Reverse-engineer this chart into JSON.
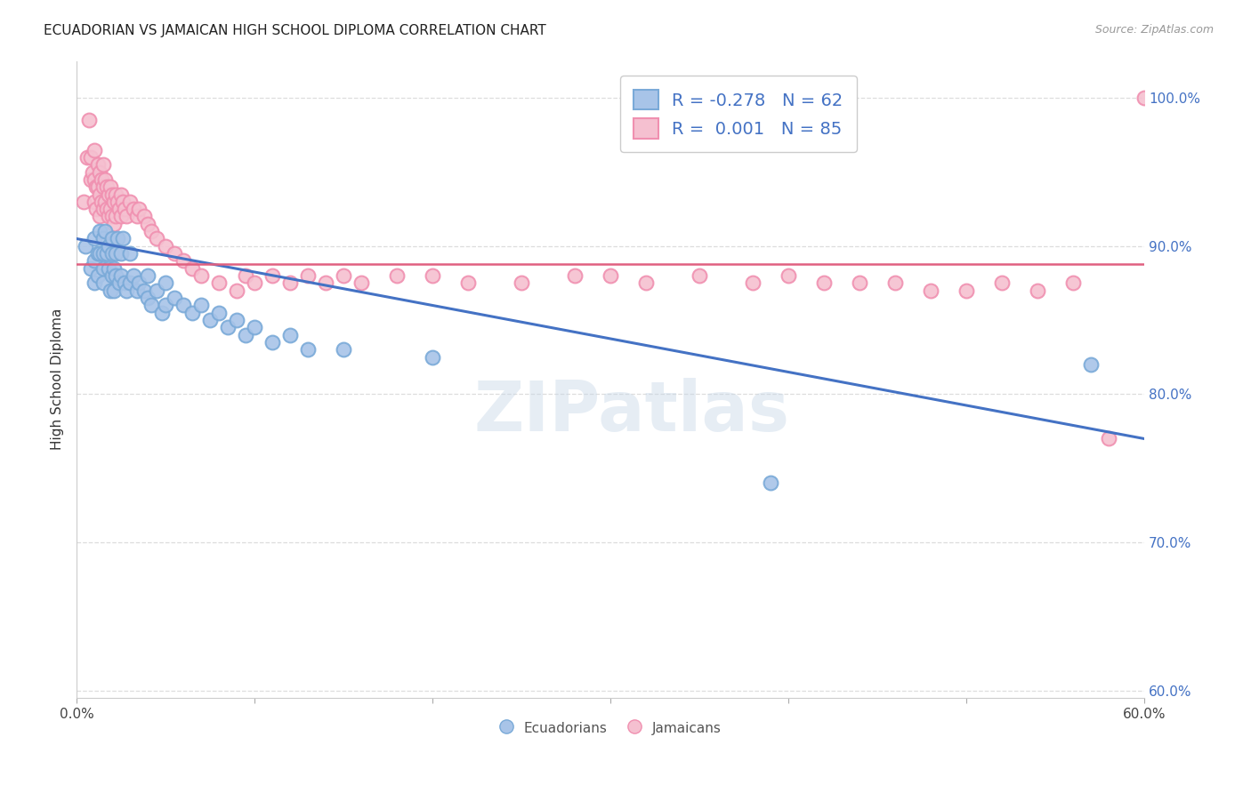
{
  "title": "ECUADORIAN VS JAMAICAN HIGH SCHOOL DIPLOMA CORRELATION CHART",
  "source": "Source: ZipAtlas.com",
  "ylabel": "High School Diploma",
  "watermark": "ZIPatlas",
  "blue_color": "#a8c4e8",
  "blue_edge": "#7aaad8",
  "pink_color": "#f5c0d0",
  "pink_edge": "#f090b0",
  "blue_line_color": "#4472c4",
  "pink_line_color": "#e06080",
  "xlim": [
    0.0,
    0.6
  ],
  "ylim": [
    0.595,
    1.025
  ],
  "yticks": [
    0.6,
    0.7,
    0.8,
    0.9,
    1.0
  ],
  "xticks": [
    0.0,
    0.1,
    0.2,
    0.3,
    0.4,
    0.5,
    0.6
  ],
  "xtick_labels_show": [
    true,
    false,
    false,
    false,
    false,
    false,
    true
  ],
  "blue_scatter_x": [
    0.005,
    0.008,
    0.01,
    0.01,
    0.01,
    0.012,
    0.012,
    0.013,
    0.013,
    0.015,
    0.015,
    0.015,
    0.015,
    0.016,
    0.017,
    0.018,
    0.018,
    0.019,
    0.02,
    0.02,
    0.02,
    0.021,
    0.021,
    0.022,
    0.022,
    0.023,
    0.024,
    0.025,
    0.025,
    0.026,
    0.027,
    0.028,
    0.03,
    0.03,
    0.032,
    0.034,
    0.035,
    0.038,
    0.04,
    0.04,
    0.042,
    0.045,
    0.048,
    0.05,
    0.05,
    0.055,
    0.06,
    0.065,
    0.07,
    0.075,
    0.08,
    0.085,
    0.09,
    0.095,
    0.1,
    0.11,
    0.12,
    0.13,
    0.15,
    0.2,
    0.39,
    0.57
  ],
  "blue_scatter_y": [
    0.9,
    0.885,
    0.905,
    0.89,
    0.875,
    0.895,
    0.88,
    0.91,
    0.895,
    0.905,
    0.895,
    0.885,
    0.875,
    0.91,
    0.895,
    0.9,
    0.885,
    0.87,
    0.905,
    0.895,
    0.88,
    0.885,
    0.87,
    0.895,
    0.88,
    0.905,
    0.875,
    0.895,
    0.88,
    0.905,
    0.875,
    0.87,
    0.895,
    0.875,
    0.88,
    0.87,
    0.875,
    0.87,
    0.88,
    0.865,
    0.86,
    0.87,
    0.855,
    0.875,
    0.86,
    0.865,
    0.86,
    0.855,
    0.86,
    0.85,
    0.855,
    0.845,
    0.85,
    0.84,
    0.845,
    0.835,
    0.84,
    0.83,
    0.83,
    0.825,
    0.74,
    0.82
  ],
  "pink_scatter_x": [
    0.004,
    0.006,
    0.007,
    0.008,
    0.008,
    0.009,
    0.01,
    0.01,
    0.01,
    0.011,
    0.011,
    0.012,
    0.012,
    0.013,
    0.013,
    0.013,
    0.014,
    0.014,
    0.015,
    0.015,
    0.015,
    0.016,
    0.016,
    0.017,
    0.017,
    0.018,
    0.018,
    0.019,
    0.019,
    0.02,
    0.02,
    0.021,
    0.021,
    0.022,
    0.022,
    0.023,
    0.024,
    0.025,
    0.025,
    0.026,
    0.027,
    0.028,
    0.03,
    0.032,
    0.034,
    0.035,
    0.038,
    0.04,
    0.042,
    0.045,
    0.05,
    0.055,
    0.06,
    0.065,
    0.07,
    0.08,
    0.09,
    0.095,
    0.1,
    0.11,
    0.12,
    0.13,
    0.14,
    0.15,
    0.16,
    0.18,
    0.2,
    0.22,
    0.25,
    0.28,
    0.3,
    0.32,
    0.35,
    0.38,
    0.4,
    0.42,
    0.44,
    0.46,
    0.48,
    0.5,
    0.52,
    0.54,
    0.56,
    0.58,
    0.6
  ],
  "pink_scatter_y": [
    0.93,
    0.96,
    0.985,
    0.945,
    0.96,
    0.95,
    0.965,
    0.945,
    0.93,
    0.94,
    0.925,
    0.955,
    0.94,
    0.95,
    0.935,
    0.92,
    0.945,
    0.93,
    0.955,
    0.94,
    0.925,
    0.945,
    0.93,
    0.94,
    0.925,
    0.935,
    0.92,
    0.94,
    0.925,
    0.935,
    0.92,
    0.93,
    0.915,
    0.935,
    0.92,
    0.93,
    0.925,
    0.935,
    0.92,
    0.93,
    0.925,
    0.92,
    0.93,
    0.925,
    0.92,
    0.925,
    0.92,
    0.915,
    0.91,
    0.905,
    0.9,
    0.895,
    0.89,
    0.885,
    0.88,
    0.875,
    0.87,
    0.88,
    0.875,
    0.88,
    0.875,
    0.88,
    0.875,
    0.88,
    0.875,
    0.88,
    0.88,
    0.875,
    0.875,
    0.88,
    0.88,
    0.875,
    0.88,
    0.875,
    0.88,
    0.875,
    0.875,
    0.875,
    0.87,
    0.87,
    0.875,
    0.87,
    0.875,
    0.77,
    1.0
  ],
  "blue_trendline_x": [
    0.0,
    0.6
  ],
  "blue_trendline_y": [
    0.905,
    0.77
  ],
  "pink_trendline_x": [
    0.0,
    0.6
  ],
  "pink_trendline_y": [
    0.888,
    0.888
  ],
  "legend_blue_label": "R = -0.278   N = 62",
  "legend_pink_label": "R =  0.001   N = 85",
  "bottom_legend_blue": "Ecuadorians",
  "bottom_legend_pink": "Jamaicans",
  "title_color": "#222222",
  "axis_color": "#cccccc",
  "right_tick_color": "#4472c4",
  "grid_color": "#dddddd",
  "background_color": "#ffffff"
}
